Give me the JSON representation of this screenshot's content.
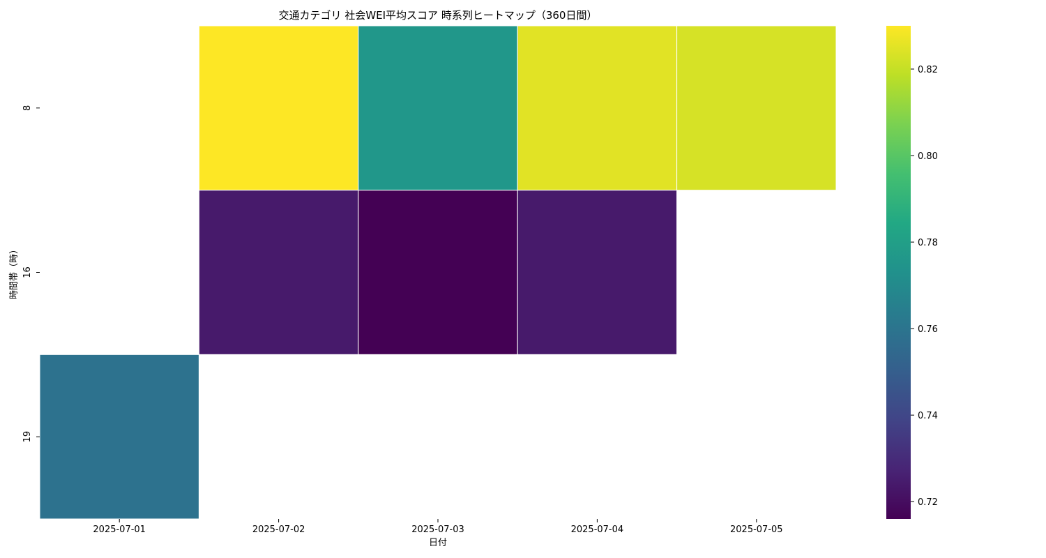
{
  "chart_data": {
    "type": "heatmap",
    "title": "交通カテゴリ 社会WEI平均スコア 時系列ヒートマップ（360日間）",
    "xlabel": "日付",
    "ylabel": "時間帯（時）",
    "x_categories": [
      "2025-07-01",
      "2025-07-02",
      "2025-07-03",
      "2025-07-04",
      "2025-07-05"
    ],
    "y_categories": [
      "8",
      "16",
      "19"
    ],
    "values": [
      [
        null,
        0.83,
        0.776,
        0.825,
        0.823
      ],
      [
        null,
        0.724,
        0.716,
        0.724,
        null
      ],
      [
        0.759,
        null,
        null,
        null,
        null
      ]
    ],
    "colormap": "viridis",
    "colorbar_range": [
      0.716,
      0.83
    ],
    "colorbar_ticks": [
      "0.72",
      "0.74",
      "0.76",
      "0.78",
      "0.80",
      "0.82"
    ],
    "grid": false
  }
}
